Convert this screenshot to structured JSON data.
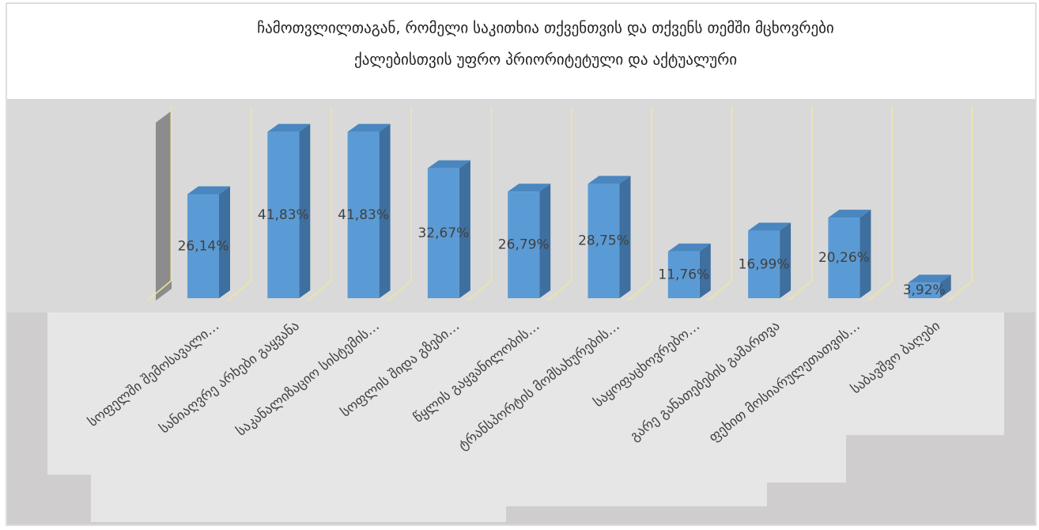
{
  "chart_data": {
    "type": "bar3d",
    "title": [
      "ჩამოთვლილთაგან, რომელი  საკითხია  თქვენთვის და თქვენს თემში მცხოვრები",
      "ქალებისთვის  უფრო პრიორიტეტული და აქტუალური"
    ],
    "categories": [
      "სოფელში შემოსავალი…",
      "სანიაღვრე არხები გაყვანა",
      "საკანალიზაციო სისტემის…",
      "სოფლის შიდა გზები…",
      "წყლის გაყვანილობის…",
      "ტრანსპორტის მომსახურების…",
      "საყოფაცხოვრებო…",
      "გარე განათებების გამართვა",
      "ფეხით მოსიარულეთათვის…",
      "საბავშვო ბაღები"
    ],
    "values": [
      26.14,
      41.83,
      41.83,
      32.67,
      26.79,
      28.75,
      11.76,
      16.99,
      20.26,
      3.92
    ],
    "value_labels": [
      "26,14%",
      "41,83%",
      "41,83%",
      "32,67%",
      "26,79%",
      "28,75%",
      "11,76%",
      "16,99%",
      "20,26%",
      "3,92%"
    ],
    "color": "#5b9bd5"
  }
}
